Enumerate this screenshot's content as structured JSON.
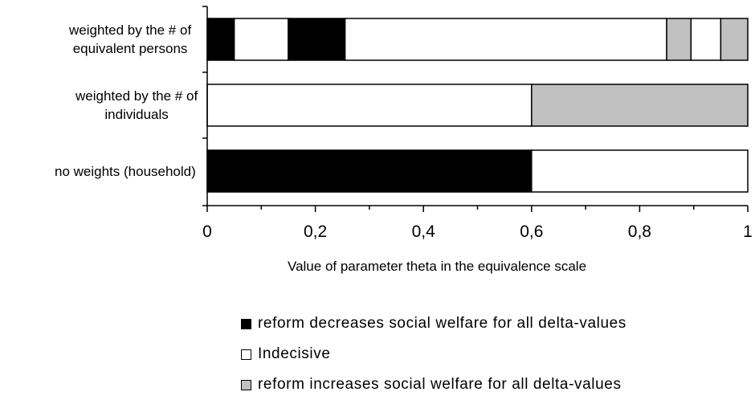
{
  "chart_data": {
    "type": "bar",
    "orientation": "horizontal",
    "stacked": true,
    "xlabel": "Value of parameter theta in the equivalence scale",
    "xlim": [
      0,
      1
    ],
    "xticks": [
      "0",
      "0,2",
      "0,4",
      "0,6",
      "0,8",
      "1"
    ],
    "xtick_values": [
      0,
      0.2,
      0.4,
      0.6,
      0.8,
      1
    ],
    "categories": [
      {
        "lines": [
          "weighted by the # of",
          "equivalent persons"
        ]
      },
      {
        "lines": [
          "weighted by the # of",
          "individuals"
        ]
      },
      {
        "lines": [
          "no weights (household)"
        ]
      }
    ],
    "segments": [
      [
        {
          "from": 0,
          "to": 0.05,
          "type": "decrease"
        },
        {
          "from": 0.05,
          "to": 0.15,
          "type": "indecisive"
        },
        {
          "from": 0.15,
          "to": 0.255,
          "type": "decrease"
        },
        {
          "from": 0.255,
          "to": 0.85,
          "type": "indecisive"
        },
        {
          "from": 0.85,
          "to": 0.895,
          "type": "increase"
        },
        {
          "from": 0.895,
          "to": 0.95,
          "type": "indecisive"
        },
        {
          "from": 0.95,
          "to": 1.0,
          "type": "increase"
        }
      ],
      [
        {
          "from": 0,
          "to": 0.6,
          "type": "indecisive"
        },
        {
          "from": 0.6,
          "to": 1.0,
          "type": "increase"
        }
      ],
      [
        {
          "from": 0,
          "to": 0.6,
          "type": "decrease"
        },
        {
          "from": 0.6,
          "to": 1.0,
          "type": "indecisive"
        }
      ]
    ],
    "legend": [
      {
        "key": "decrease",
        "label": "reform decreases social welfare for all delta-values",
        "color": "#000000"
      },
      {
        "key": "indecisive",
        "label": "Indecisive",
        "color": "#ffffff"
      },
      {
        "key": "increase",
        "label": "reform increases social welfare for all delta-values",
        "color": "#c0c0c0"
      }
    ],
    "grid": false,
    "legend_position": "bottom"
  }
}
